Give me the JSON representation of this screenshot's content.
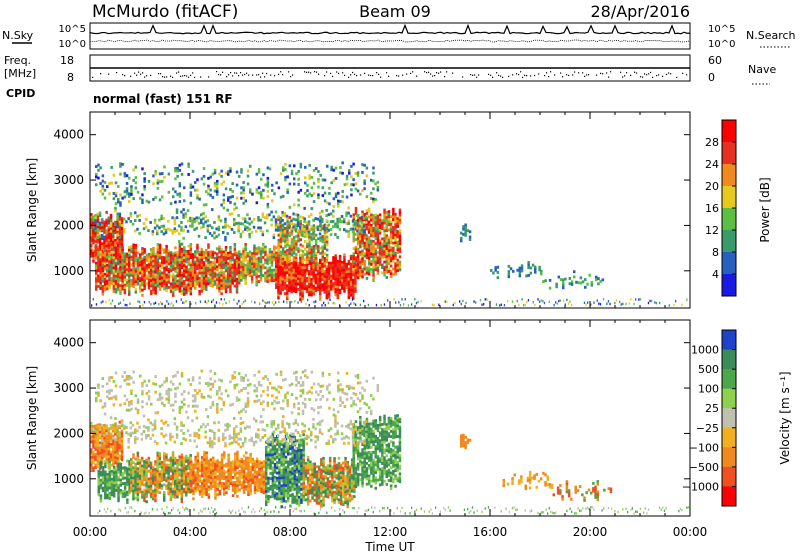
{
  "header": {
    "station": "McMurdo (fitACF)",
    "beam": "Beam 09",
    "date": "28/Apr/2016",
    "mode": "normal (fast) 151 RF"
  },
  "chart_data": [
    {
      "type": "line",
      "name": "noise-panel",
      "left_label": "N.Sky",
      "right_label": "N.Search",
      "left_ticks": [
        "10^5",
        "10^0"
      ],
      "right_ticks": [
        "10^5",
        "10^0"
      ]
    },
    {
      "type": "line",
      "name": "frequency-nave-panel",
      "left_label_1": "Freq.",
      "left_label_2": "[MHz]",
      "right_label": "Nave",
      "left_ticks": [
        18,
        8
      ],
      "right_ticks": [
        60,
        0
      ],
      "cpid_label": "CPID"
    },
    {
      "type": "heatmap",
      "name": "power-panel",
      "ylabel": "Slant Range [km]",
      "ylim": [
        180,
        4500
      ],
      "yticks": [
        1000,
        2000,
        3000,
        4000
      ],
      "xlim_hours": [
        0,
        24
      ],
      "colorbar_label": "Power [dB]",
      "colorbar_ticks": [
        4,
        8,
        12,
        16,
        20,
        24,
        28
      ],
      "colorbar_colors": [
        "#1a1ae6",
        "#2860c0",
        "#3a9b6a",
        "#5cbf44",
        "#e6c81e",
        "#f08a1e",
        "#e83020",
        "#ff0000"
      ]
    },
    {
      "type": "heatmap",
      "name": "velocity-panel",
      "ylabel": "Slant Range [km]",
      "ylim": [
        180,
        4500
      ],
      "yticks": [
        1000,
        2000,
        3000,
        4000
      ],
      "xlim_hours": [
        0,
        24
      ],
      "xticks": [
        "00:00",
        "04:00",
        "08:00",
        "12:00",
        "16:00",
        "20:00",
        "00:00"
      ],
      "xlabel": "Time UT",
      "colorbar_label": "Velocity [m s⁻¹]",
      "colorbar_ticks": [
        "1000",
        "500",
        "100",
        "25",
        "−25",
        "−100",
        "−500",
        "−1000"
      ],
      "colorbar_colors": [
        "#1d44c8",
        "#3c8c5a",
        "#4aa84a",
        "#8ed04e",
        "#c0c0b0",
        "#f0b020",
        "#f08a1e",
        "#f05020",
        "#ff0000"
      ]
    }
  ]
}
